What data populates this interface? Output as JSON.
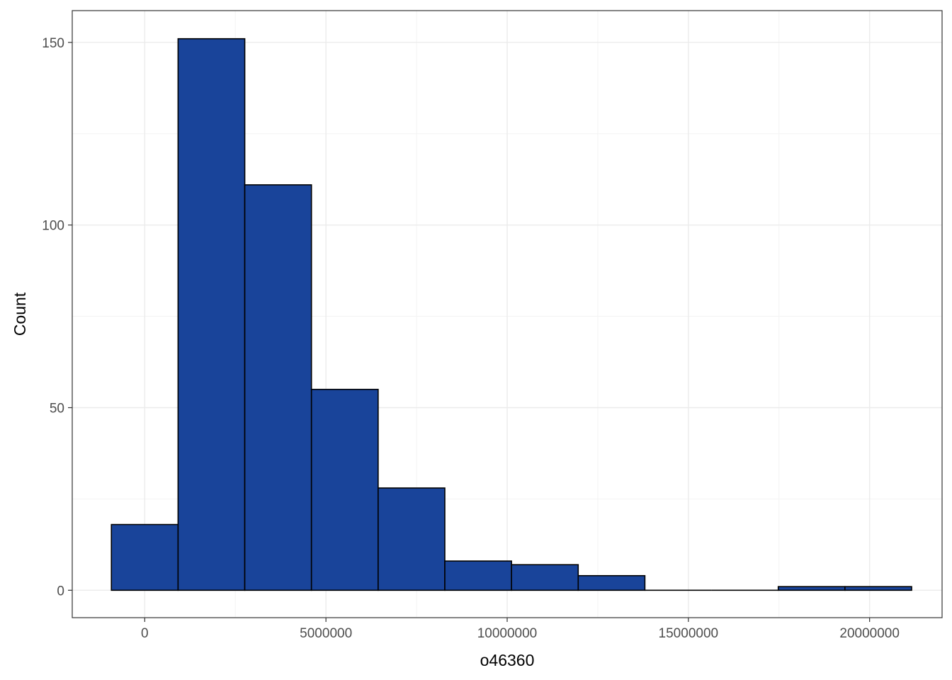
{
  "chart_data": {
    "type": "bar",
    "subtype": "histogram",
    "title": "",
    "xlabel": "o46360",
    "ylabel": "Count",
    "xlim": [
      -2000000,
      22000000
    ],
    "ylim": [
      -7.5,
      158.7
    ],
    "x_ticks": [
      0,
      5000000,
      10000000,
      15000000,
      20000000
    ],
    "x_tick_labels": [
      "0",
      "5000000",
      "10000000",
      "15000000",
      "20000000"
    ],
    "y_ticks": [
      0,
      50,
      100,
      150
    ],
    "y_tick_labels": [
      "0",
      "50",
      "100",
      "150"
    ],
    "x_minor_ticks": [
      2500000,
      7500000,
      12500000,
      17500000
    ],
    "y_minor_ticks": [
      25,
      75,
      125
    ],
    "grid": true,
    "bins": [
      {
        "x0": -920000,
        "x1": 920000,
        "count": 18
      },
      {
        "x0": 920000,
        "x1": 2760000,
        "count": 151
      },
      {
        "x0": 2760000,
        "x1": 4600000,
        "count": 111
      },
      {
        "x0": 4600000,
        "x1": 6440000,
        "count": 55
      },
      {
        "x0": 6440000,
        "x1": 8280000,
        "count": 28
      },
      {
        "x0": 8280000,
        "x1": 10120000,
        "count": 8
      },
      {
        "x0": 10120000,
        "x1": 11960000,
        "count": 7
      },
      {
        "x0": 11960000,
        "x1": 13800000,
        "count": 4
      },
      {
        "x0": 13800000,
        "x1": 15640000,
        "count": 0
      },
      {
        "x0": 15640000,
        "x1": 17480000,
        "count": 0
      },
      {
        "x0": 17480000,
        "x1": 19320000,
        "count": 1
      },
      {
        "x0": 19320000,
        "x1": 21160000,
        "count": 1
      }
    ],
    "colors": {
      "bar_fill": "#19449A",
      "bar_stroke": "#000000",
      "grid_major": "#EBEBEB",
      "grid_minor": "#F3F3F3",
      "panel_border": "#333333"
    }
  }
}
